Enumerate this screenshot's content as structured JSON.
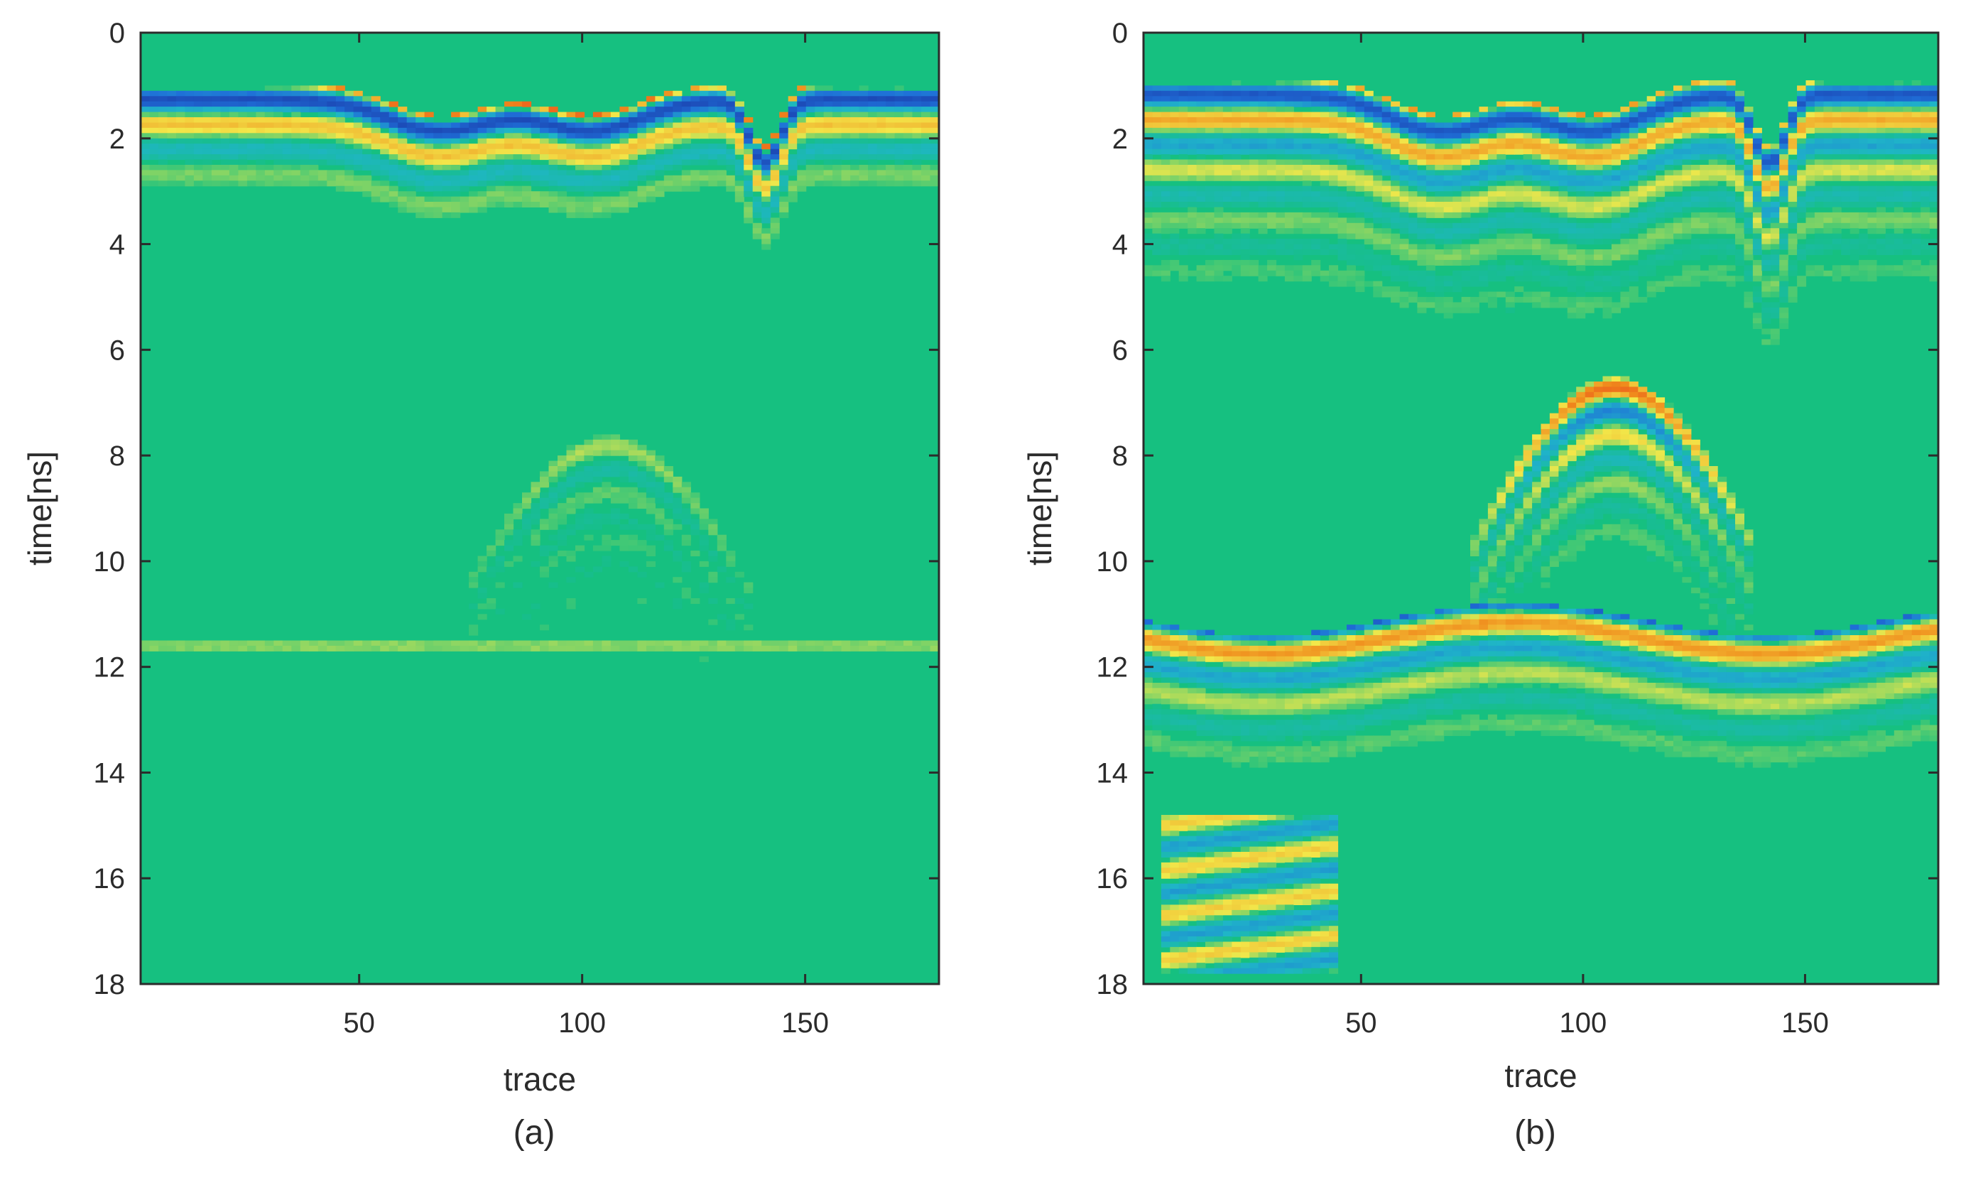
{
  "colors": {
    "background_green": "#16c080",
    "deep_blue": "#1a2f9e",
    "blue": "#1f6fd8",
    "cyan": "#1fb5c8",
    "yellow": "#f2e84a",
    "orange": "#f08a1c",
    "red": "#e8321e",
    "axis": "#2b2b2b"
  },
  "chart_data": [
    {
      "type": "heatmap",
      "panel_label": "(a)",
      "xlabel": "trace",
      "ylabel": "time[ns]",
      "xlim": [
        1,
        180
      ],
      "ylim": [
        0,
        18
      ],
      "y_inverted": true,
      "xticks": [
        50,
        100,
        150
      ],
      "yticks": [
        0,
        2,
        4,
        6,
        8,
        10,
        12,
        14,
        16,
        18
      ],
      "colormap": "parula/jet-like (blue-green-yellow-red)",
      "features": [
        {
          "kind": "surface_layer",
          "time_ns": [
            1.1,
            2.9
          ],
          "strength": 1.0
        },
        {
          "kind": "undulations",
          "traces": [
            68,
            102,
            141
          ],
          "depth_ns": [
            0.6,
            0.6,
            1.2
          ]
        },
        {
          "kind": "faint_hyperbola",
          "apex_trace": 106,
          "apex_time_ns": 7.6,
          "strength": 0.25
        },
        {
          "kind": "faint_horizontal_reflector",
          "time_ns": 11.6,
          "strength": 0.15
        }
      ]
    },
    {
      "type": "heatmap",
      "panel_label": "(b)",
      "xlabel": "trace",
      "ylabel": "time[ns]",
      "xlim": [
        1,
        180
      ],
      "ylim": [
        0,
        18
      ],
      "y_inverted": true,
      "xticks": [
        50,
        100,
        150
      ],
      "yticks": [
        0,
        2,
        4,
        6,
        8,
        10,
        12,
        14,
        16,
        18
      ],
      "colormap": "parula/jet-like (blue-green-yellow-red)",
      "features": [
        {
          "kind": "surface_layer",
          "time_ns": [
            1.0,
            4.8
          ],
          "strength": 0.85
        },
        {
          "kind": "undulations",
          "traces": [
            68,
            102,
            142
          ],
          "depth_ns": [
            0.7,
            0.7,
            1.3
          ]
        },
        {
          "kind": "hyperbola",
          "apex_trace": 107,
          "apex_time_ns": 6.5,
          "strength": 0.9
        },
        {
          "kind": "horizontal_reflector",
          "time_ns": [
            11.3,
            13.6
          ],
          "strength": 0.7
        },
        {
          "kind": "deep_layers",
          "traces": [
            5,
            45
          ],
          "time_ns": [
            14.8,
            17.8
          ],
          "strength": 0.4
        }
      ]
    }
  ]
}
